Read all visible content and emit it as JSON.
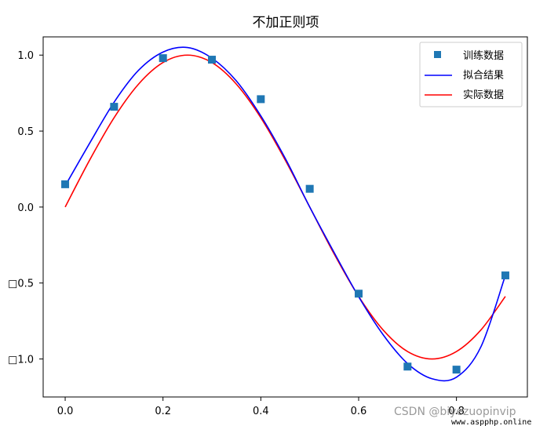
{
  "chart_data": {
    "type": "line",
    "title": "不加正则项",
    "xlabel": "",
    "ylabel": "",
    "xlim": [
      -0.045,
      0.945
    ],
    "ylim": [
      -1.25,
      1.12
    ],
    "x_ticks": [
      0.0,
      0.2,
      0.4,
      0.6,
      0.8
    ],
    "x_tick_labels": [
      "0.0",
      "0.2",
      "0.4",
      "0.6",
      "0.8"
    ],
    "y_ticks": [
      1.0,
      0.5,
      0.0,
      -0.5,
      -1.0
    ],
    "y_tick_labels": [
      "1.0",
      "0.5",
      "0.0",
      "□0.5",
      "□1.0"
    ],
    "grid": false,
    "legend_position": "upper right",
    "series": [
      {
        "name": "训练数据",
        "kind": "scatter",
        "marker": "square",
        "color": "#1f77b4",
        "x": [
          0.0,
          0.1,
          0.2,
          0.3,
          0.4,
          0.5,
          0.6,
          0.7,
          0.8,
          0.9
        ],
        "y": [
          0.15,
          0.66,
          0.98,
          0.97,
          0.71,
          0.12,
          -0.57,
          -1.05,
          -1.07,
          -0.45
        ]
      },
      {
        "name": "拟合结果",
        "kind": "line",
        "color": "#0000ff",
        "x": [
          0.0,
          0.05,
          0.1,
          0.15,
          0.2,
          0.25,
          0.3,
          0.35,
          0.4,
          0.45,
          0.5,
          0.55,
          0.6,
          0.65,
          0.7,
          0.75,
          0.8,
          0.85,
          0.9
        ],
        "y": [
          0.14,
          0.42,
          0.69,
          0.9,
          1.02,
          1.05,
          0.98,
          0.83,
          0.6,
          0.32,
          0.0,
          -0.3,
          -0.59,
          -0.84,
          -1.03,
          -1.13,
          -1.12,
          -0.92,
          -0.45
        ]
      },
      {
        "name": "实际数据",
        "kind": "line",
        "color": "#ff0000",
        "x": [
          0.0,
          0.05,
          0.1,
          0.15,
          0.2,
          0.25,
          0.3,
          0.35,
          0.4,
          0.45,
          0.5,
          0.55,
          0.6,
          0.65,
          0.7,
          0.75,
          0.8,
          0.85,
          0.9
        ],
        "y": [
          0.0,
          0.309,
          0.588,
          0.809,
          0.951,
          1.0,
          0.951,
          0.809,
          0.588,
          0.309,
          0.0,
          -0.309,
          -0.588,
          -0.809,
          -0.951,
          -1.0,
          -0.951,
          -0.809,
          -0.588
        ]
      }
    ]
  },
  "watermark": {
    "text": "CSDN @biyezuopinvip",
    "site": "www.aspphp.online"
  }
}
